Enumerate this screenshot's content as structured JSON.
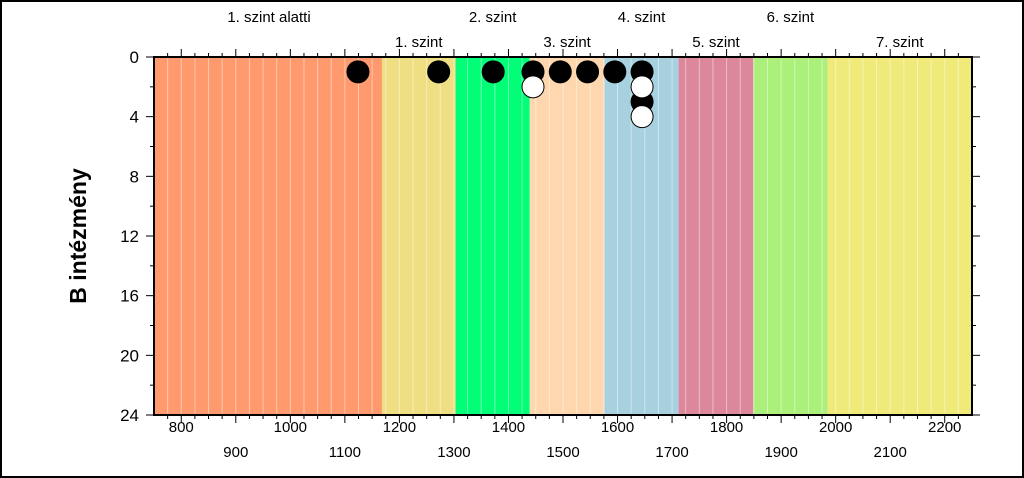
{
  "chart_data": {
    "type": "scatter",
    "ylabel": "B intézmény",
    "xlim": [
      750,
      2250
    ],
    "ylim": [
      24,
      0
    ],
    "x_minor_step": 25,
    "x_ticks_row1": [
      800,
      1000,
      1200,
      1400,
      1600,
      1800,
      2000,
      2200
    ],
    "x_ticks_row2": [
      900,
      1100,
      1300,
      1500,
      1700,
      1900,
      2100
    ],
    "y_ticks": [
      0,
      4,
      8,
      12,
      16,
      20,
      24
    ],
    "bands": [
      {
        "label": "1. szint alatti",
        "start": 750,
        "end": 1168,
        "color": "#ff9a6e",
        "label_row": 1
      },
      {
        "label": "1. szint",
        "start": 1168,
        "end": 1303,
        "color": "#eedf83",
        "label_row": 2
      },
      {
        "label": "2. szint",
        "start": 1303,
        "end": 1439,
        "color": "#00ff77",
        "label_row": 1
      },
      {
        "label": "3. szint",
        "start": 1439,
        "end": 1576,
        "color": "#ffd7ae",
        "label_row": 2
      },
      {
        "label": "4. szint",
        "start": 1576,
        "end": 1712,
        "color": "#a7d1df",
        "label_row": 1
      },
      {
        "label": "5. szint",
        "start": 1712,
        "end": 1849,
        "color": "#dc889a",
        "label_row": 2
      },
      {
        "label": "6. szint",
        "start": 1849,
        "end": 1985,
        "color": "#aaf07a",
        "label_row": 1
      },
      {
        "label": "7. szint",
        "start": 1985,
        "end": 2250,
        "color": "#efea7a",
        "label_row": 2
      }
    ],
    "series": [
      {
        "marker": "filled-black",
        "points": [
          {
            "x": 1124,
            "y": 1
          },
          {
            "x": 1272,
            "y": 1
          },
          {
            "x": 1372,
            "y": 1
          },
          {
            "x": 1445,
            "y": 1
          },
          {
            "x": 1495,
            "y": 1
          },
          {
            "x": 1545,
            "y": 1
          },
          {
            "x": 1595,
            "y": 1
          },
          {
            "x": 1645,
            "y": 1
          },
          {
            "x": 1645,
            "y": 3
          }
        ]
      },
      {
        "marker": "open-white",
        "points": [
          {
            "x": 1445,
            "y": 2
          },
          {
            "x": 1645,
            "y": 2
          },
          {
            "x": 1645,
            "y": 4
          }
        ]
      }
    ],
    "grid": "vertical-minor"
  }
}
